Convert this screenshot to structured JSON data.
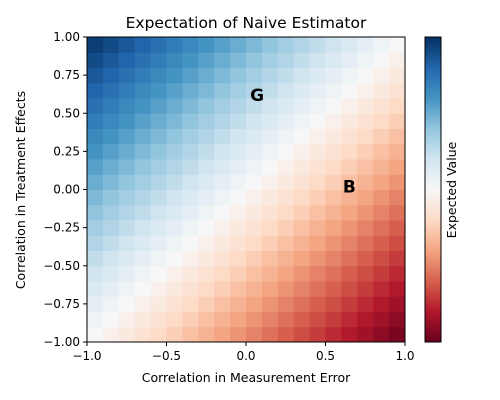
{
  "chart_data": {
    "type": "heatmap",
    "title": "Expectation of Naive Estimator",
    "xlabel": "Correlation in Measurement Error",
    "ylabel": "Correlation in Treatment Effects",
    "colorbar_label": "Expected Value",
    "colormap": "RdBu",
    "xlim": [
      -1.0,
      1.0
    ],
    "ylim": [
      -1.0,
      1.0
    ],
    "grid_size": 20,
    "value_model": "value = y - x (diagonal gradient: red at x=-1,y=-1 ... blue at x=1,y=1; white along the diagonal where y ≈ x)",
    "x_ticks": [
      -1.0,
      -0.5,
      0.0,
      0.5,
      1.0
    ],
    "x_tick_labels": [
      "−1.0",
      "−0.5",
      "0.0",
      "0.5",
      "1.0"
    ],
    "y_ticks": [
      -1.0,
      -0.75,
      -0.5,
      -0.25,
      0.0,
      0.25,
      0.5,
      0.75,
      1.0
    ],
    "y_tick_labels": [
      "−1.00",
      "−0.75",
      "−0.50",
      "−0.25",
      "0.00",
      "0.25",
      "0.50",
      "0.75",
      "1.00"
    ],
    "annotations": [
      {
        "text": "G",
        "x": 0.07,
        "y": 0.62
      },
      {
        "text": "B",
        "x": 0.65,
        "y": 0.02
      }
    ],
    "colors": {
      "low": "#67001f",
      "mid": "#f7f7f7",
      "high": "#053061"
    }
  }
}
